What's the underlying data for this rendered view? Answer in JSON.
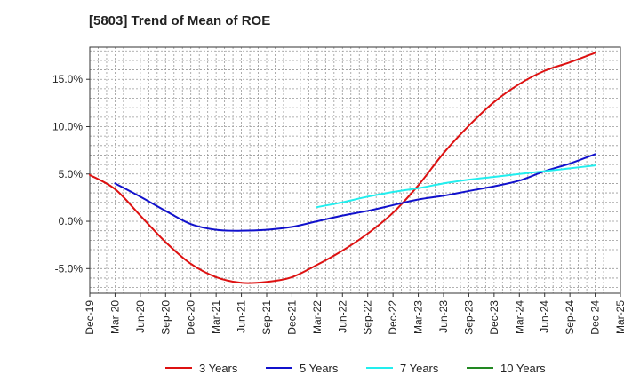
{
  "chart_data": {
    "type": "line",
    "title": "[5803]  Trend of Mean of ROE",
    "xlabel": "",
    "ylabel": "",
    "x_ticks": [
      "Dec-19",
      "Mar-20",
      "Jun-20",
      "Sep-20",
      "Dec-20",
      "Mar-21",
      "Jun-21",
      "Sep-21",
      "Dec-21",
      "Mar-22",
      "Jun-22",
      "Sep-22",
      "Dec-22",
      "Mar-23",
      "Jun-23",
      "Sep-23",
      "Dec-23",
      "Mar-24",
      "Jun-24",
      "Sep-24",
      "Dec-24",
      "Mar-25"
    ],
    "y_ticks": [
      -5.0,
      0.0,
      5.0,
      10.0,
      15.0
    ],
    "y_tick_labels": [
      "-5.0%",
      "0.0%",
      "5.0%",
      "10.0%",
      "15.0%"
    ],
    "ylim": [
      -7.6,
      18.4
    ],
    "grid": true,
    "legend_position": "bottom",
    "series": [
      {
        "name": "3 Years",
        "color": "#dd1111",
        "x": [
          "Dec-19",
          "Mar-20",
          "Jun-20",
          "Sep-20",
          "Dec-20",
          "Mar-21",
          "Jun-21",
          "Sep-21",
          "Dec-21",
          "Mar-22",
          "Jun-22",
          "Sep-22",
          "Dec-22",
          "Mar-23",
          "Jun-23",
          "Sep-23",
          "Dec-23",
          "Mar-24",
          "Jun-24",
          "Sep-24",
          "Dec-24"
        ],
        "values": [
          4.9,
          3.4,
          0.6,
          -2.2,
          -4.5,
          -5.9,
          -6.5,
          -6.4,
          -5.9,
          -4.6,
          -3.1,
          -1.3,
          0.9,
          3.8,
          7.2,
          10.1,
          12.6,
          14.5,
          15.9,
          16.8,
          17.8
        ]
      },
      {
        "name": "5 Years",
        "color": "#1111cc",
        "x": [
          "Mar-20",
          "Jun-20",
          "Sep-20",
          "Dec-20",
          "Mar-21",
          "Jun-21",
          "Sep-21",
          "Dec-21",
          "Mar-22",
          "Jun-22",
          "Sep-22",
          "Dec-22",
          "Mar-23",
          "Jun-23",
          "Sep-23",
          "Dec-23",
          "Mar-24",
          "Jun-24",
          "Sep-24",
          "Dec-24"
        ],
        "values": [
          4.0,
          2.6,
          1.1,
          -0.3,
          -0.9,
          -1.0,
          -0.9,
          -0.6,
          0.0,
          0.6,
          1.1,
          1.7,
          2.3,
          2.7,
          3.2,
          3.7,
          4.3,
          5.3,
          6.1,
          7.1
        ]
      },
      {
        "name": "7 Years",
        "color": "#22eeee",
        "x": [
          "Mar-22",
          "Jun-22",
          "Sep-22",
          "Dec-22",
          "Mar-23",
          "Jun-23",
          "Sep-23",
          "Dec-23",
          "Mar-24",
          "Jun-24",
          "Sep-24",
          "Dec-24"
        ],
        "values": [
          1.5,
          2.0,
          2.6,
          3.1,
          3.5,
          4.0,
          4.4,
          4.7,
          5.0,
          5.3,
          5.6,
          5.9
        ]
      },
      {
        "name": "10 Years",
        "color": "#228822",
        "x": [],
        "values": []
      }
    ]
  }
}
